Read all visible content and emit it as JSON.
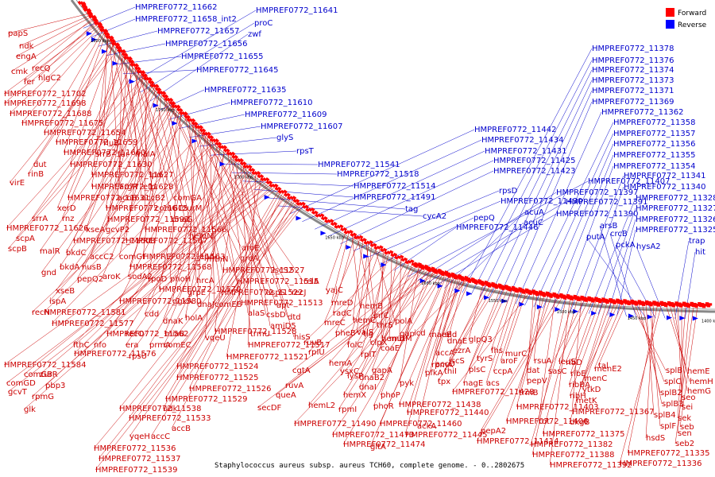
{
  "title": "Staphylococcus aureus subsp. aureus TCH60, complete genome. - 0..2802675",
  "legend": [
    {
      "label": "Forward",
      "color": "#ff0000"
    },
    {
      "label": "Reverse",
      "color": "#0000ff"
    }
  ],
  "colors": {
    "forward": "#ff0000",
    "reverse": "#0000ff",
    "forward_text": "#cc0000",
    "reverse_text": "#0000cc"
  },
  "ticks": [
    "1800 kbp",
    "1750 kbp",
    "1700 kbp",
    "1650 kbp",
    "1600 kbp",
    "1550 kbp",
    "1500 kbp",
    "1450 kbp",
    "1400 kbp"
  ],
  "reverse_labels": [
    "HMPREF0772_11662",
    "HMPREF0772_11658_int2",
    "HMPREF0772_11657",
    "HMPREF0772_11656",
    "HMPREF0772_11655",
    "HMPREF0772_11645",
    "HMPREF0772_11641",
    "proC",
    "zwf",
    "HMPREF0772_11635",
    "HMPREF0772_11610",
    "HMPREF0772_11609",
    "HMPREF0772_11607",
    "glyS",
    "rpsT",
    "HMPREF0772_11541",
    "HMPREF0772_11518",
    "HMPREF0772_11514",
    "HMPREF0772_11491",
    "tag",
    "cycA2",
    "HMPREF0772_11442",
    "HMPREF0772_11434",
    "HMPREF0772_11431",
    "HMPREF0772_11425",
    "HMPREF0772_11423",
    "rpsD",
    "HMPREF0772_11430",
    "pepQ",
    "HMPREF0772_11446",
    "HMPREF0772_11407",
    "HMPREF0772_11397",
    "HMPREF0772_11391",
    "HMPREF0772_11390",
    "acuA",
    "acuC",
    "HMPREF0772_11378",
    "HMPREF0772_11376",
    "HMPREF0772_11374",
    "HMPREF0772_11373",
    "HMPREF0772_11371",
    "HMPREF0772_11369",
    "HMPREF0772_11362",
    "HMPREF0772_11358",
    "HMPREF0772_11357",
    "HMPREF0772_11356",
    "HMPREF0772_11355",
    "HMPREF0772_11354",
    "HMPREF0772_11341",
    "HMPREF0772_11340",
    "HMPREF0772_11328",
    "HMPREF0772_11327",
    "HMPREF0772_11326",
    "HMPREF0772_11325",
    "arsB",
    "crcB",
    "putA",
    "pckA",
    "hysA2",
    "trap",
    "hit"
  ],
  "forward_labels_left": [
    "papS",
    "ndk",
    "engA",
    "recQ",
    "cmk",
    "hlgC2",
    "fer",
    "HMPREF0772_11702",
    "HMPREF0772_11698",
    "HMPREF0772_11688",
    "HMPREF0772_11675",
    "HMPREF0772_11654",
    "HMPREF0772_11659",
    "HMPREF0772_11660",
    "rluB",
    "srrB",
    "fur",
    "malA",
    "dut",
    "HMPREF0772_11630",
    "rinB",
    "HMPREF0772_11627",
    "lpd",
    "virE",
    "HMPREF0772_11628",
    "argR",
    "efp",
    "xerD",
    "HMPREF0772_11631",
    "acoB",
    "accB2",
    "comGA",
    "rnz",
    "HMPREF0772_11615",
    "comGC",
    "zurM",
    "srrA",
    "HMPREF0772_11592",
    "dnaG",
    "xseA",
    "gcvP2",
    "HMPREF0772_11626",
    "HMPREF0772_11566",
    "scpA",
    "HMPREF0772_11608",
    "HMPREF0772_11567",
    "hemN",
    "scpB",
    "malR",
    "bkdC",
    "accC2",
    "comGF",
    "HMPREF0772_11563",
    "lepA",
    "mtnN",
    "greA",
    "aroE",
    "gnd",
    "bkdA",
    "nusB",
    "pepQ2",
    "aroK",
    "sodA2",
    "rpoD",
    "phoH",
    "HMPREF0772_11568",
    "HMPREF0772_11527",
    "iscS2",
    "xseB",
    "hrcA",
    "HMPREF0772_11515",
    "relA",
    "HMPREF0772_11570",
    "grpE",
    "HMPREF0772_11522",
    "aspS",
    "recJ",
    "ispA",
    "HMPREF0772_11580",
    "dgkA",
    "dnaJ",
    "comEB",
    "HMPREF0772_11513",
    "apt",
    "recN",
    "HMPREF0772_11581",
    "cdd",
    "holA",
    "HMPREF0772_11577",
    "vqeU",
    "dnaK",
    "alaS",
    "csbD",
    "dtd",
    "HMPREF0772_11562",
    "recO",
    "miaB",
    "HMPREF0772_11528",
    "trmU",
    "amiD5",
    "hisS",
    "fthC",
    "nfo",
    "era",
    "prmA",
    "comEC",
    "HMPREF0772_11517",
    "HMPREF0772_11576",
    "rpsU",
    "HMPREF0772_11521",
    "HMPREF0772_11584",
    "comGB",
    "zurR",
    "pbp3",
    "comGD",
    "rpmG",
    "gcvT",
    "glk",
    "HMPREF0772_11524",
    "HMPREF0772_11525",
    "HMPREF0772_11526",
    "HMPREF0772_11529",
    "HMPREF0772_11538",
    "udk",
    "HMPREF0772_11533",
    "accB",
    "yqeH",
    "accC",
    "HMPREF0772_11536",
    "HMPREF0772_11537",
    "HMPREF0772_11539"
  ],
  "forward_labels_mid": [
    "yajC",
    "mreD",
    "hemB",
    "radC",
    "infC",
    "mreC",
    "hemC",
    "thrS",
    "valS",
    "tig",
    "polA",
    "pheB",
    "folC",
    "hemD",
    "clpX",
    "rpIT",
    "mutM",
    "ruvB",
    "coaE",
    "gap",
    "rpIU",
    "ysxC",
    "dnaB2",
    "gapA",
    "hemA",
    "lysP",
    "pyk",
    "hemX",
    "dnaI",
    "cgtA",
    "hemL2",
    "rpmI",
    "phoP",
    "ruvA",
    "phoR",
    "queA",
    "secDF",
    "HMPREF0772_11490",
    "HMPREF0772_11473",
    "HMPREF0772_11474",
    "gltA",
    "HMPREF0772_11460",
    "HMPREF0772_11445",
    "HMPREF0772_11440",
    "ackA",
    "HMPREF0772_11438",
    "pfkA",
    "accD",
    "accA",
    "rpmA",
    "dnaE",
    "maeB",
    "icd",
    "ald"
  ],
  "forward_labels_right": [
    "glpQ3",
    "iscS",
    "ezrA",
    "thiI",
    "tpx",
    "nagE",
    "plsC",
    "tyrS",
    "fhs",
    "acs",
    "ccpA",
    "aroF",
    "murC",
    "HMPREF0772_11428",
    "pepV",
    "dat",
    "rsuA",
    "trmB",
    "HMPREF0772_11403",
    "HMPREF0772_11406",
    "rot",
    "pepA2",
    "HMPREF0772_11414",
    "HMPREF0772_11388",
    "HMPREF0772_11392",
    "HMPREF0772_11382",
    "HMPREF0772_11375",
    "HMPREF0772_11367",
    "sasC",
    "leuS",
    "ribD",
    "ribE",
    "ribBA",
    "ribH",
    "dkgB",
    "metK",
    "ytkD",
    "menC",
    "menE2",
    "tal",
    "splB",
    "splC",
    "splB2",
    "splB3",
    "splB4",
    "splF",
    "hsdS",
    "HMPREF0772_11335",
    "HMPREF0772_11336",
    "hemE",
    "hemH",
    "hemG",
    "seo",
    "sei",
    "sek",
    "sen",
    "seb2",
    "seb"
  ]
}
